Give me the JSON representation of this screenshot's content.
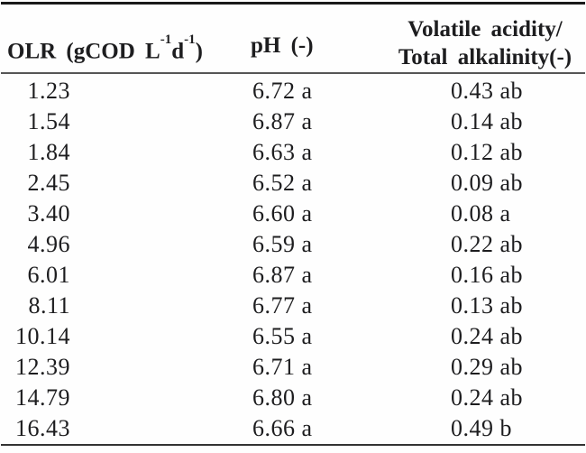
{
  "colors": {
    "text": "#1d1d1f",
    "rule_top": "#1a1a1a",
    "rule_mid": "#565656",
    "rule_bottom": "#333333",
    "background": "#fefefe"
  },
  "table": {
    "header": {
      "olr": {
        "pre": "OLR (gCOD L",
        "sup1": "-1",
        "mid": "d",
        "sup2": "-1",
        "post": ")"
      },
      "ph": "pH (-)",
      "va_ta_line1": "Volatile acidity/",
      "va_ta_line2": "Total alkalinity(-)"
    },
    "rows": [
      {
        "olr": "1.23",
        "ph": "6.72 a",
        "va_ta": "0.43 ab"
      },
      {
        "olr": "1.54",
        "ph": "6.87 a",
        "va_ta": "0.14 ab"
      },
      {
        "olr": "1.84",
        "ph": "6.63 a",
        "va_ta": "0.12 ab"
      },
      {
        "olr": "2.45",
        "ph": "6.52 a",
        "va_ta": "0.09 ab"
      },
      {
        "olr": "3.40",
        "ph": "6.60 a",
        "va_ta": "0.08 a"
      },
      {
        "olr": "4.96",
        "ph": "6.59 a",
        "va_ta": "0.22 ab"
      },
      {
        "olr": "6.01",
        "ph": "6.87 a",
        "va_ta": "0.16 ab"
      },
      {
        "olr": "8.11",
        "ph": "6.77 a",
        "va_ta": "0.13 ab"
      },
      {
        "olr": "10.14",
        "ph": "6.55 a",
        "va_ta": "0.24 ab"
      },
      {
        "olr": "12.39",
        "ph": "6.71 a",
        "va_ta": "0.29 ab"
      },
      {
        "olr": "14.79",
        "ph": "6.80 a",
        "va_ta": "0.24 ab"
      },
      {
        "olr": "16.43",
        "ph": "6.66 a",
        "va_ta": "0.49 b"
      }
    ]
  }
}
